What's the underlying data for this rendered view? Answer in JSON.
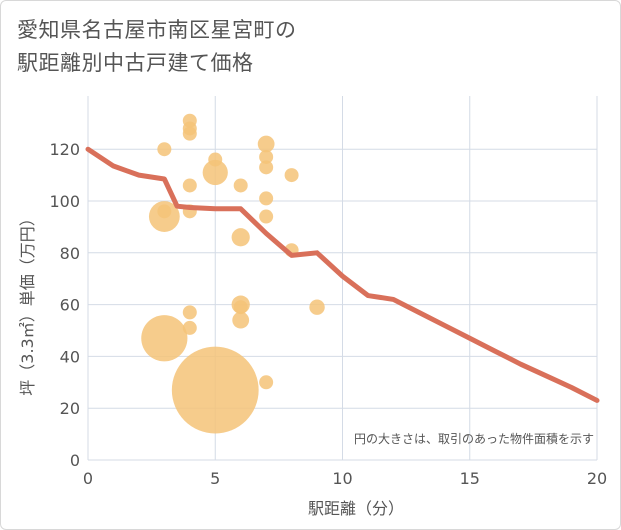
{
  "chart_data": {
    "type": "scatter",
    "title_line1": "愛知県名古屋市南区星宮町の",
    "title_line2": "駅距離別中古戸建て価格",
    "xlabel": "駅距離（分）",
    "ylabel": "坪（3.3㎡）単価（万円）",
    "xlim": [
      0,
      20
    ],
    "ylim": [
      0,
      135
    ],
    "xticks": [
      0,
      5,
      10,
      15,
      20
    ],
    "yticks": [
      0,
      20,
      40,
      60,
      80,
      100,
      120
    ],
    "grid": true,
    "note": "円の大きさは、取引のあった物件面積を示す",
    "colors": {
      "bubble": "#f5c378",
      "line": "#d9705a",
      "grid": "#d4dbe6",
      "text": "#555555"
    },
    "scatter_points": [
      {
        "x": 3,
        "y": 120,
        "size": 1
      },
      {
        "x": 3,
        "y": 96,
        "size": 1
      },
      {
        "x": 3,
        "y": 94,
        "size": 2.2
      },
      {
        "x": 3,
        "y": 47,
        "size": 3.3
      },
      {
        "x": 4,
        "y": 131,
        "size": 1
      },
      {
        "x": 4,
        "y": 128,
        "size": 1
      },
      {
        "x": 4,
        "y": 126,
        "size": 1
      },
      {
        "x": 4,
        "y": 106,
        "size": 1
      },
      {
        "x": 4,
        "y": 96,
        "size": 1
      },
      {
        "x": 4,
        "y": 57,
        "size": 1
      },
      {
        "x": 4,
        "y": 51,
        "size": 1
      },
      {
        "x": 5,
        "y": 116,
        "size": 1
      },
      {
        "x": 5,
        "y": 111,
        "size": 1.8
      },
      {
        "x": 5,
        "y": 27,
        "size": 6.2
      },
      {
        "x": 6,
        "y": 106,
        "size": 1
      },
      {
        "x": 6,
        "y": 86,
        "size": 1.3
      },
      {
        "x": 6,
        "y": 60,
        "size": 1.3
      },
      {
        "x": 6,
        "y": 59,
        "size": 1
      },
      {
        "x": 6,
        "y": 54,
        "size": 1.2
      },
      {
        "x": 7,
        "y": 122,
        "size": 1.2
      },
      {
        "x": 7,
        "y": 117,
        "size": 1
      },
      {
        "x": 7,
        "y": 113,
        "size": 1
      },
      {
        "x": 7,
        "y": 101,
        "size": 1
      },
      {
        "x": 7,
        "y": 94,
        "size": 1
      },
      {
        "x": 7,
        "y": 30,
        "size": 1
      },
      {
        "x": 8,
        "y": 110,
        "size": 1
      },
      {
        "x": 8,
        "y": 81,
        "size": 1
      },
      {
        "x": 9,
        "y": 59,
        "size": 1.1
      }
    ],
    "trend_line": {
      "x": [
        0,
        1,
        2,
        3,
        3.5,
        4,
        5,
        6,
        7,
        8,
        9,
        10,
        11,
        12,
        13,
        14,
        15,
        16,
        17,
        18,
        19,
        20
      ],
      "y": [
        120,
        113.5,
        110,
        108.5,
        98,
        97.5,
        97,
        97,
        87.5,
        79,
        80,
        71,
        63.5,
        62,
        57,
        52,
        47,
        42,
        37,
        32.5,
        28,
        23
      ]
    }
  }
}
